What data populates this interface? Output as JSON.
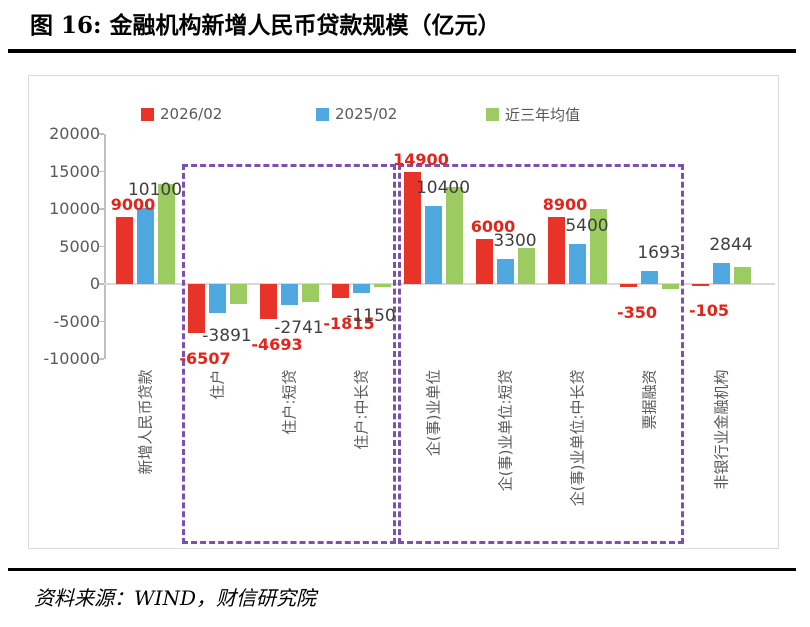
{
  "header": {
    "title": "图 16:  金融机构新增人民币贷款规模（亿元）"
  },
  "footer": {
    "source": "资料来源：WIND，财信研究院"
  },
  "chart_data": {
    "type": "bar",
    "title": "金融机构新增人民币贷款规模（亿元）",
    "unit": "亿元",
    "categories": [
      "新增人民币贷款",
      "住户",
      "住户:短贷",
      "住户:中长贷",
      "企(事)业单位",
      "企(事)业单位:短贷",
      "企(事)业单位:中长贷",
      "票据融资",
      "非银行业金融机构"
    ],
    "series": [
      {
        "name": "2026/02",
        "color": "#e73328",
        "label_color": "#e0261a",
        "labels_shown": true,
        "values": [
          9000,
          -6507,
          -4693,
          -1815,
          14900,
          6000,
          8900,
          -350,
          -105
        ]
      },
      {
        "name": "2025/02",
        "color": "#4fa8e0",
        "label_color": "#3f3f3f",
        "labels_shown": true,
        "values": [
          10100,
          -3891,
          -2741,
          -1150,
          10400,
          3300,
          5400,
          1693,
          2844
        ]
      },
      {
        "name": "近三年均值",
        "color": "#9ccb62",
        "labels_shown": false,
        "values": [
          13400,
          -2650,
          -2450,
          -450,
          13000,
          4800,
          10000,
          -700,
          2300
        ]
      }
    ],
    "y_axis": {
      "min": -10000,
      "max": 20000,
      "step": 5000
    },
    "highlight_boxes": [
      {
        "start_category": 1,
        "end_category": 3,
        "color": "#7d50b0"
      },
      {
        "start_category": 4,
        "end_category": 7,
        "color": "#7d50b0"
      }
    ],
    "legend_position": "top",
    "gridlines": false,
    "axis_text_color": "#595959",
    "zero_line_color": "#d9d9d9"
  }
}
